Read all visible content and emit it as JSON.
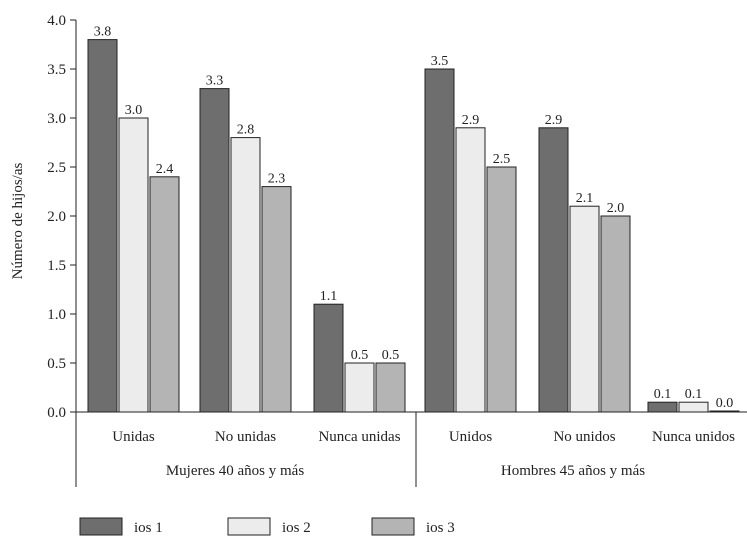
{
  "chart_data": {
    "type": "bar",
    "ylabel": "Número de hijos/as",
    "ylim": [
      0,
      4.0
    ],
    "ytick_step": 0.5,
    "grid": false,
    "legend_position": "bottom-left",
    "groups": [
      {
        "label": "Mujeres 40 años y más",
        "categories": [
          "Unidas",
          "No unidas",
          "Nunca unidas"
        ]
      },
      {
        "label": "Hombres 45 años y más",
        "categories": [
          "Unidos",
          "No unidos",
          "Nunca unidos"
        ]
      }
    ],
    "categories": [
      "Unidas",
      "No unidas",
      "Nunca unidas",
      "Unidos",
      "No unidos",
      "Nunca unidos"
    ],
    "series": [
      {
        "name": "ios 1",
        "color": "#6e6e6e",
        "values": [
          3.8,
          3.3,
          1.1,
          3.5,
          2.9,
          0.1
        ],
        "labels": [
          "3.8",
          "3.3",
          "1.1",
          "3.5",
          "2.9",
          "0.1"
        ]
      },
      {
        "name": "ios 2",
        "color": "#ececec",
        "values": [
          3.0,
          2.8,
          0.5,
          2.9,
          2.1,
          0.1
        ],
        "labels": [
          "3.0",
          "2.8",
          "0.5",
          "2.9",
          "2.1",
          "0.1"
        ]
      },
      {
        "name": "ios 3",
        "color": "#b4b4b4",
        "values": [
          2.4,
          2.3,
          0.5,
          2.5,
          2.0,
          0.0
        ],
        "labels": [
          "2.4",
          "2.3",
          "0.5",
          "2.5",
          "2.0",
          "0.0"
        ]
      }
    ]
  }
}
